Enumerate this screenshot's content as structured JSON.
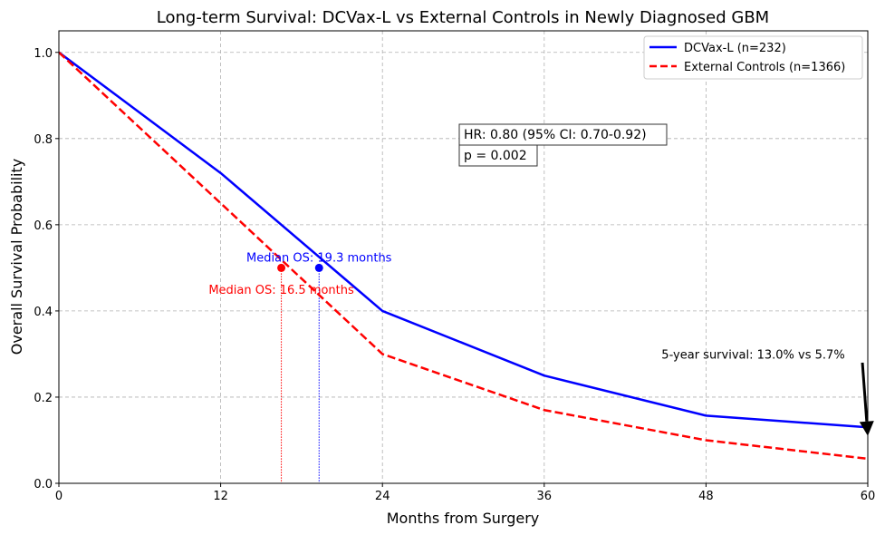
{
  "chart_data": {
    "type": "line",
    "title": "Long-term Survival: DCVax-L vs External Controls in Newly Diagnosed GBM",
    "xlabel": "Months from Surgery",
    "ylabel": "Overall Survival Probability",
    "xlim": [
      0,
      60
    ],
    "ylim": [
      0,
      1.05
    ],
    "xticks": [
      0,
      12,
      24,
      36,
      48,
      60
    ],
    "yticks": [
      0.0,
      0.2,
      0.4,
      0.6,
      0.8,
      1.0
    ],
    "xtick_labels": [
      "0",
      "12",
      "24",
      "36",
      "48",
      "60"
    ],
    "ytick_labels": [
      "0.0",
      "0.2",
      "0.4",
      "0.6",
      "0.8",
      "1.0"
    ],
    "grid": true,
    "legend_position": "top-right",
    "series": [
      {
        "name": "DCVax-L (n=232)",
        "color": "#0000ff",
        "style": "solid",
        "x": [
          0,
          12,
          24,
          36,
          48,
          60
        ],
        "y": [
          1.0,
          0.72,
          0.4,
          0.25,
          0.157,
          0.13
        ]
      },
      {
        "name": "External Controls (n=1366)",
        "color": "#ff0000",
        "style": "dashed",
        "x": [
          0,
          12,
          24,
          36,
          48,
          60
        ],
        "y": [
          1.0,
          0.65,
          0.3,
          0.17,
          0.1,
          0.057
        ]
      }
    ],
    "medians": [
      {
        "label": "Median OS: 19.3 months",
        "x": 19.3,
        "y": 0.5,
        "color": "#0000ff",
        "label_x": 19.3,
        "label_y": 0.525
      },
      {
        "label": "Median OS: 16.5 months",
        "x": 16.5,
        "y": 0.5,
        "color": "#ff0000",
        "label_x": 16.5,
        "label_y": 0.45
      }
    ],
    "stats": {
      "hr": "HR: 0.80 (95% CI: 0.70-0.92)",
      "p": "p = 0.002"
    },
    "annotation": {
      "text": "5-year survival: 13.0% vs 5.7%",
      "text_x": 51.5,
      "text_y": 0.3,
      "arrow_from": [
        59.6,
        0.28
      ],
      "arrow_to": [
        60,
        0.11
      ]
    }
  }
}
